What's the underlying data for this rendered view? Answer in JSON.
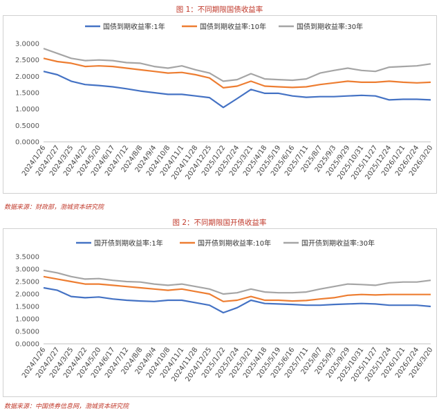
{
  "colors": {
    "s1": "#4472c4",
    "s2": "#ed7d31",
    "s3": "#a5a5a5",
    "title": "#c0392b"
  },
  "chart_data": [
    {
      "type": "line",
      "title": "图 1：不同期限国债收益率",
      "source": "数据来源：财政部，渤城资本研究院",
      "ylim": [
        0,
        3.0
      ],
      "yticks": [
        "3.0000",
        "2.5000",
        "2.0000",
        "1.5000",
        "1.0000",
        "0.5000",
        "0.0000"
      ],
      "xticks": [
        "2024/1/26",
        "2024/2/27",
        "2024/3/25",
        "2024/4/22",
        "2024/5/20",
        "2024/6/17",
        "2024/7/12",
        "2024/8/8",
        "2024/9/4",
        "2024/10/8",
        "2024/11/1",
        "2024/11/28",
        "2024/12/25",
        "2025/1/22",
        "2025/2/24",
        "2025/3/21",
        "2025/4/18",
        "2025/5/19",
        "2025/6/16",
        "2025/7/11",
        "2025/8/7",
        "2025/9/3",
        "2025/9/29",
        "2025/10/31",
        "2025/11/27",
        "2025/12/24",
        "2026/1/21",
        "2026/2/24",
        "2026/3/20"
      ],
      "series": [
        {
          "name": "国债到期收益率:1年",
          "values": [
            2.15,
            2.05,
            1.85,
            1.75,
            1.72,
            1.68,
            1.62,
            1.55,
            1.5,
            1.45,
            1.45,
            1.4,
            1.35,
            1.05,
            1.32,
            1.6,
            1.48,
            1.48,
            1.4,
            1.36,
            1.38,
            1.38,
            1.4,
            1.42,
            1.4,
            1.28,
            1.3,
            1.3,
            1.28
          ]
        },
        {
          "name": "国债到期收益率:10年",
          "values": [
            2.55,
            2.45,
            2.4,
            2.3,
            2.32,
            2.3,
            2.25,
            2.2,
            2.15,
            2.1,
            2.12,
            2.05,
            1.95,
            1.65,
            1.7,
            1.85,
            1.7,
            1.68,
            1.66,
            1.68,
            1.75,
            1.8,
            1.85,
            1.82,
            1.82,
            1.85,
            1.82,
            1.8,
            1.82
          ]
        },
        {
          "name": "国债到期收益率:30年",
          "values": [
            2.85,
            2.7,
            2.55,
            2.48,
            2.5,
            2.48,
            2.42,
            2.4,
            2.3,
            2.25,
            2.32,
            2.2,
            2.1,
            1.85,
            1.9,
            2.08,
            1.92,
            1.9,
            1.88,
            1.92,
            2.1,
            2.18,
            2.25,
            2.18,
            2.15,
            2.28,
            2.3,
            2.32,
            2.38
          ]
        }
      ]
    },
    {
      "type": "line",
      "title": "图 2：不同期限国开债收益率",
      "source": "数据来源：中国债券信息网，渤城资本研究院",
      "ylim": [
        0,
        3.5
      ],
      "yticks": [
        "3.5000",
        "3.0000",
        "2.5000",
        "2.0000",
        "1.5000",
        "1.0000",
        "0.5000",
        "0.0000"
      ],
      "xticks": [
        "2024/1/26",
        "2024/2/27",
        "2024/3/25",
        "2024/4/22",
        "2024/5/20",
        "2024/6/17",
        "2024/7/12",
        "2024/8/8",
        "2024/9/4",
        "2024/10/8",
        "2024/11/1",
        "2024/11/28",
        "2024/12/25",
        "2025/1/22",
        "2025/2/24",
        "2025/3/21",
        "2025/4/18",
        "2025/5/19",
        "2025/6/16",
        "2025/7/11",
        "2025/8/7",
        "2025/9/3",
        "2025/9/29",
        "2025/10/31",
        "2025/11/27",
        "2025/12/24",
        "2026/1/21",
        "2026/2/24",
        "2026/3/20"
      ],
      "series": [
        {
          "name": "国开债到期收益率:1年",
          "values": [
            2.25,
            2.15,
            1.9,
            1.85,
            1.88,
            1.8,
            1.75,
            1.72,
            1.7,
            1.75,
            1.75,
            1.65,
            1.55,
            1.25,
            1.45,
            1.75,
            1.62,
            1.6,
            1.58,
            1.55,
            1.55,
            1.58,
            1.6,
            1.62,
            1.6,
            1.55,
            1.55,
            1.55,
            1.5
          ]
        },
        {
          "name": "国开债到期收益率:10年",
          "values": [
            2.7,
            2.6,
            2.5,
            2.4,
            2.4,
            2.35,
            2.3,
            2.25,
            2.2,
            2.15,
            2.2,
            2.1,
            2.0,
            1.7,
            1.75,
            1.9,
            1.75,
            1.75,
            1.72,
            1.74,
            1.8,
            1.85,
            1.95,
            1.98,
            1.96,
            1.98,
            1.98,
            1.98,
            1.98
          ]
        },
        {
          "name": "国开债到期收益率:30年",
          "values": [
            2.95,
            2.85,
            2.7,
            2.6,
            2.62,
            2.55,
            2.5,
            2.48,
            2.4,
            2.35,
            2.4,
            2.3,
            2.2,
            2.0,
            2.05,
            2.2,
            2.08,
            2.05,
            2.05,
            2.08,
            2.2,
            2.3,
            2.4,
            2.38,
            2.35,
            2.45,
            2.48,
            2.48,
            2.55
          ]
        }
      ]
    }
  ]
}
